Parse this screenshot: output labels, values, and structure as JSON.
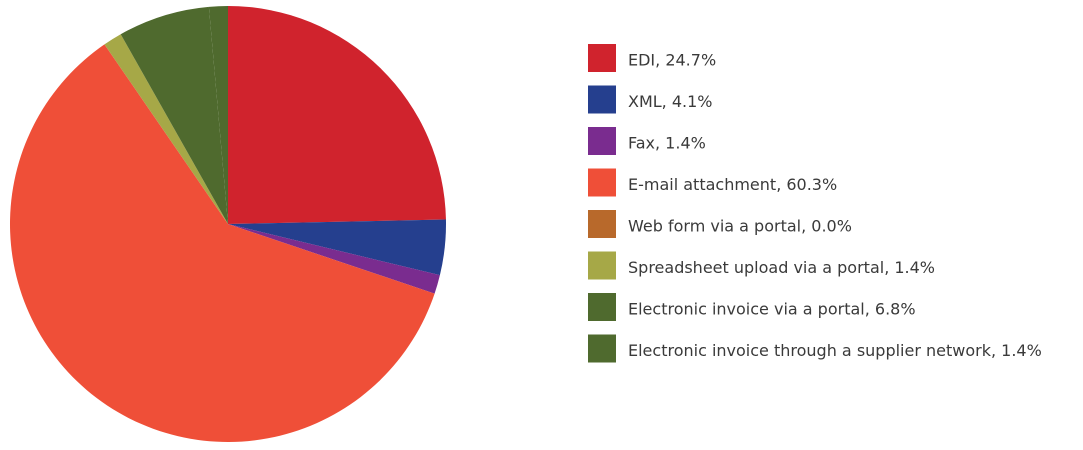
{
  "chart_data": {
    "type": "pie",
    "labels": [
      "EDI, 24.7%",
      "XML, 4.1%",
      "Fax, 1.4%",
      "E-mail attachment, 60.3%",
      "Web form via a portal, 0.0%",
      "Spreadsheet upload via a portal, 1.4%",
      "Electronic invoice via a portal, 6.8%",
      "Electronic invoice through a supplier network, 1.4%"
    ],
    "values": [
      24.7,
      4.1,
      1.4,
      60.3,
      0.0,
      1.4,
      6.8,
      1.4
    ],
    "colors": [
      "#d0232d",
      "#253f8e",
      "#7a2c8f",
      "#ef4f38",
      "#b8692b",
      "#a6a847",
      "#4f6a2e",
      "#4f6a2e"
    ],
    "legend": "right"
  }
}
